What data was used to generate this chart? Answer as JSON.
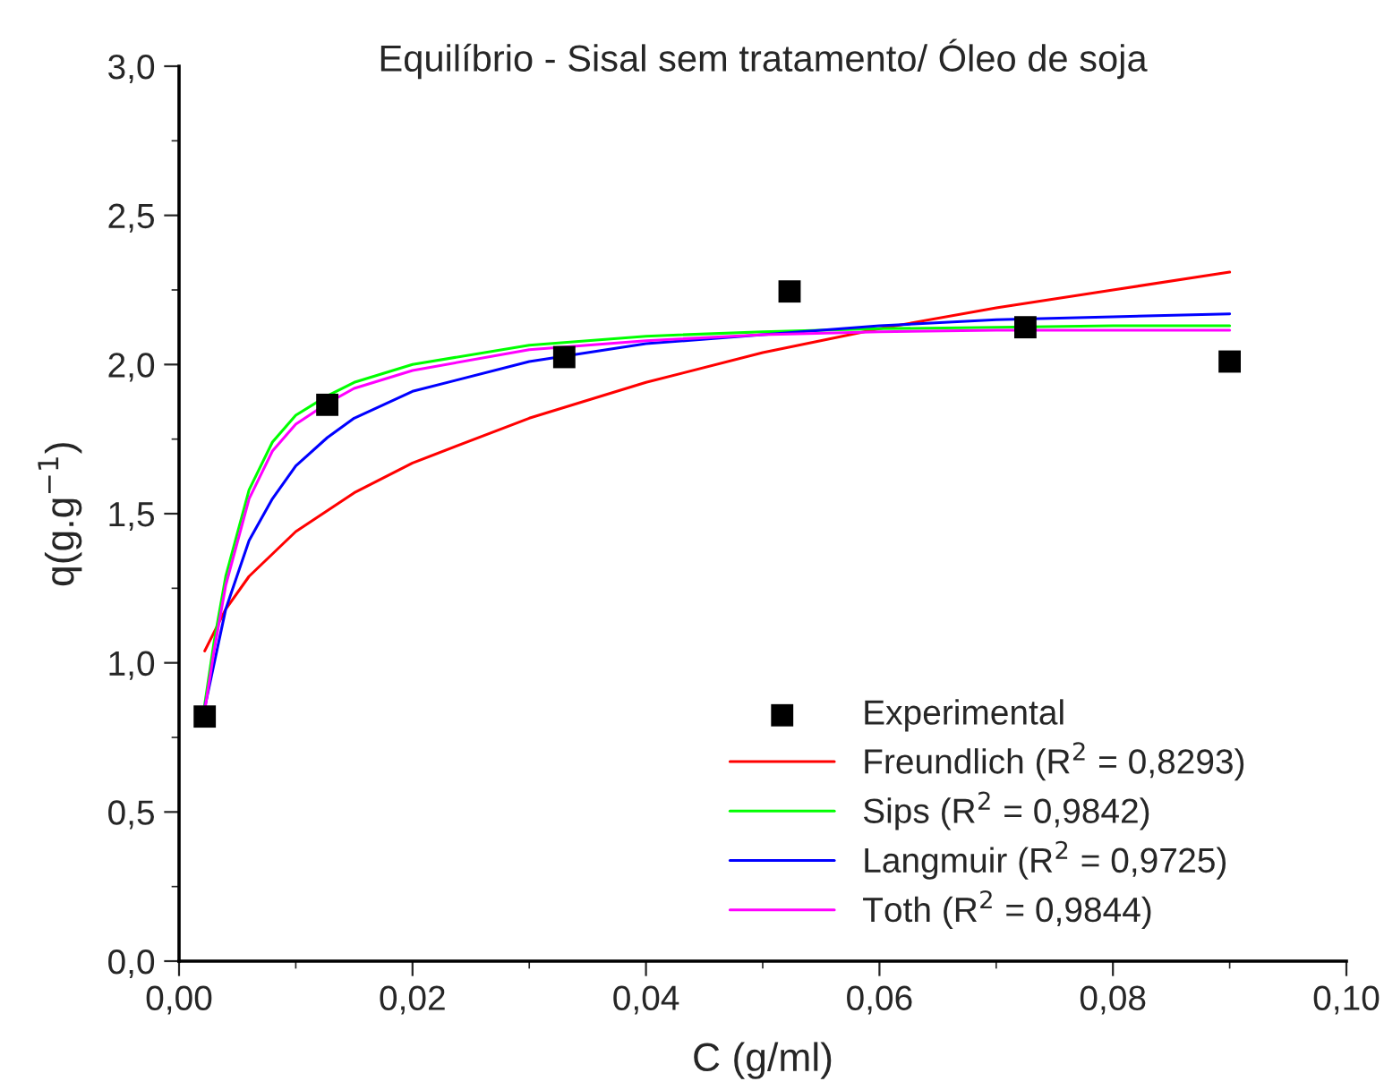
{
  "chart_data": {
    "type": "line",
    "title": "Equilíbrio - Sisal sem tratamento/ Óleo de soja",
    "xlabel": "C (g/ml)",
    "ylabel": "q(g.g$^{−1}$)",
    "xlim": [
      0,
      0.1
    ],
    "ylim": [
      0,
      3
    ],
    "xticks": [
      {
        "value": 0,
        "label": "0,00"
      },
      {
        "value": 0.02,
        "label": "0,02"
      },
      {
        "value": 0.04,
        "label": "0,04"
      },
      {
        "value": 0.06,
        "label": "0,06"
      },
      {
        "value": 0.08,
        "label": "0,08"
      },
      {
        "value": 0.1,
        "label": "0,10"
      }
    ],
    "yticks": [
      {
        "value": 0,
        "label": "0,0"
      },
      {
        "value": 0.5,
        "label": "0,5"
      },
      {
        "value": 1,
        "label": "1,0"
      },
      {
        "value": 1.5,
        "label": "1,5"
      },
      {
        "value": 2,
        "label": "2,0"
      },
      {
        "value": 2.5,
        "label": "2,5"
      },
      {
        "value": 3,
        "label": "3,0"
      }
    ],
    "grid": false,
    "legend": "bottom right",
    "series": [
      {
        "name": "Experimental",
        "type": "scatter",
        "marker": "square",
        "color": "#000000",
        "x": [
          0.0022,
          0.0127,
          0.033,
          0.0523,
          0.0725,
          0.09
        ],
        "values": [
          0.82,
          1.865,
          2.025,
          2.245,
          2.125,
          2.01
        ]
      },
      {
        "name": "Freundlich (R$^{2}$ = 0,8293)",
        "color": "#ff0000",
        "x": [
          0.0022,
          0.004,
          0.006,
          0.01,
          0.015,
          0.02,
          0.03,
          0.04,
          0.05,
          0.06,
          0.07,
          0.08,
          0.09
        ],
        "values": [
          1.04,
          1.18,
          1.29,
          1.44,
          1.57,
          1.67,
          1.82,
          1.94,
          2.04,
          2.12,
          2.19,
          2.25,
          2.31
        ]
      },
      {
        "name": "Sips (R$^{2}$ = 0,9842)",
        "color": "#00ff00",
        "x": [
          0.0022,
          0.003,
          0.004,
          0.006,
          0.008,
          0.01,
          0.0127,
          0.015,
          0.02,
          0.03,
          0.04,
          0.05,
          0.06,
          0.07,
          0.08,
          0.09
        ],
        "values": [
          0.86,
          1.07,
          1.29,
          1.58,
          1.74,
          1.83,
          1.895,
          1.94,
          2.0,
          2.065,
          2.095,
          2.11,
          2.12,
          2.125,
          2.13,
          2.13
        ]
      },
      {
        "name": "Langmuir (R$^{2}$ = 0,9725)",
        "color": "#0000ff",
        "x": [
          0.0022,
          0.004,
          0.006,
          0.008,
          0.01,
          0.0127,
          0.015,
          0.02,
          0.03,
          0.04,
          0.05,
          0.06,
          0.07,
          0.08,
          0.09
        ],
        "values": [
          0.85,
          1.18,
          1.41,
          1.55,
          1.66,
          1.755,
          1.82,
          1.91,
          2.01,
          2.07,
          2.1,
          2.13,
          2.15,
          2.16,
          2.17
        ]
      },
      {
        "name": "Toth (R$^{2}$ = 0,9844)",
        "color": "#ff00ff",
        "x": [
          0.0022,
          0.003,
          0.004,
          0.006,
          0.008,
          0.01,
          0.0127,
          0.015,
          0.02,
          0.03,
          0.04,
          0.05,
          0.06,
          0.07,
          0.08,
          0.09
        ],
        "values": [
          0.84,
          1.04,
          1.26,
          1.55,
          1.71,
          1.8,
          1.87,
          1.92,
          1.98,
          2.05,
          2.08,
          2.1,
          2.11,
          2.115,
          2.115,
          2.115
        ]
      }
    ]
  }
}
